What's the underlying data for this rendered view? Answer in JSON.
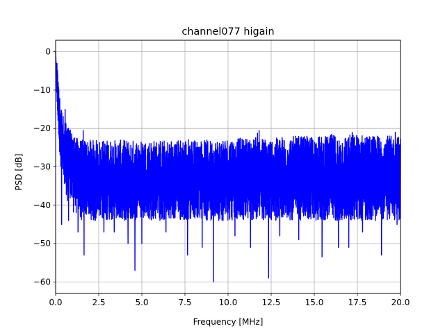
{
  "chart_data": {
    "type": "line",
    "title": "channel077 higain",
    "xlabel": "Frequency [MHz]",
    "ylabel": "PSD [dB]",
    "xlim": [
      0,
      20
    ],
    "ylim": [
      -63,
      3
    ],
    "xticks": [
      0,
      2.5,
      5,
      7.5,
      10,
      12.5,
      15,
      17.5,
      20
    ],
    "xtick_labels": [
      "0.0",
      "2.5",
      "5.0",
      "7.5",
      "10.0",
      "12.5",
      "15.0",
      "17.5",
      "20.0"
    ],
    "yticks": [
      0,
      -10,
      -20,
      -30,
      -40,
      -50,
      -60
    ],
    "ytick_labels": [
      "0",
      "−10",
      "−20",
      "−30",
      "−40",
      "−50",
      "−60"
    ],
    "grid": true,
    "series": [
      {
        "color": "#0000ff",
        "x": [
          0.0,
          0.03,
          0.06,
          0.1,
          0.15,
          0.2,
          0.25,
          0.3,
          0.4,
          0.5,
          0.6,
          0.8,
          1.0,
          1.25,
          1.5,
          1.65,
          2.0,
          2.5,
          3.0,
          3.5,
          4.0,
          4.25,
          4.6,
          5.0,
          5.5,
          6.0,
          6.3,
          6.5,
          7.0,
          7.5,
          7.65,
          8.0,
          8.5,
          8.9,
          9.2,
          9.6,
          10.0,
          10.5,
          11.0,
          11.5,
          11.8,
          12.0,
          12.4,
          12.8,
          13.0,
          13.5,
          14.0,
          14.5,
          15.0,
          15.5,
          15.8,
          16.0,
          16.5,
          17.0,
          17.5,
          18.0,
          18.4,
          18.9,
          19.5,
          20.0
        ],
        "values": [
          0.0,
          -3.5,
          -7.0,
          -9.0,
          -12.0,
          -15.0,
          -18.0,
          -20.0,
          -22.0,
          -24.0,
          -25.0,
          -26.0,
          -28.0,
          -29.5,
          -31.0,
          -32.0,
          -33.0,
          -33.5,
          -33.5,
          -34.0,
          -34.0,
          -34.0,
          -34.0,
          -34.0,
          -34.0,
          -34.0,
          -34.0,
          -33.5,
          -33.5,
          -33.5,
          -33.5,
          -33.5,
          -33.5,
          -34.0,
          -34.0,
          -33.5,
          -33.5,
          -33.5,
          -33.5,
          -33.5,
          -33.0,
          -33.5,
          -33.5,
          -33.5,
          -33.5,
          -33.0,
          -33.5,
          -33.5,
          -33.5,
          -33.5,
          -33.5,
          -33.0,
          -33.5,
          -33.0,
          -33.0,
          -33.0,
          -33.0,
          -33.0,
          -33.0,
          -33.0
        ],
        "upper": [
          0.0,
          -1.0,
          -2.0,
          -4.0,
          -7.0,
          -10.0,
          -12.0,
          -14.0,
          -16.0,
          -17.5,
          -18.5,
          -20.0,
          -21.5,
          -22.5,
          -23.0,
          -23.0,
          -23.0,
          -23.0,
          -23.0,
          -23.0,
          -23.0,
          -23.0,
          -23.0,
          -23.0,
          -23.0,
          -23.0,
          -23.0,
          -23.0,
          -23.0,
          -22.5,
          -22.5,
          -23.0,
          -23.0,
          -23.0,
          -23.0,
          -22.5,
          -22.5,
          -22.5,
          -22.5,
          -22.5,
          -20.5,
          -22.5,
          -22.5,
          -22.5,
          -22.0,
          -22.0,
          -22.0,
          -22.0,
          -22.0,
          -22.0,
          -22.0,
          -21.5,
          -22.0,
          -21.5,
          -21.5,
          -21.5,
          -22.0,
          -21.5,
          -22.0,
          -22.0
        ],
        "lower": [
          0.0,
          -6.0,
          -12.0,
          -16.0,
          -20.0,
          -24.0,
          -28.0,
          -30.0,
          -33.0,
          -36.0,
          -38.0,
          -40.0,
          -42.0,
          -43.0,
          -44.0,
          -44.0,
          -44.0,
          -44.0,
          -44.0,
          -44.0,
          -44.0,
          -44.0,
          -44.0,
          -44.0,
          -44.0,
          -44.0,
          -44.0,
          -44.0,
          -44.0,
          -44.0,
          -44.0,
          -44.0,
          -44.0,
          -44.0,
          -44.0,
          -44.0,
          -44.0,
          -44.0,
          -44.0,
          -44.0,
          -44.0,
          -44.0,
          -44.0,
          -44.0,
          -44.0,
          -44.0,
          -44.0,
          -44.0,
          -44.0,
          -44.0,
          -44.0,
          -44.0,
          -44.0,
          -44.0,
          -44.0,
          -44.0,
          -44.0,
          -44.0,
          -44.0,
          -44.0
        ],
        "dips": [
          {
            "x": 0.35,
            "value": -45.0
          },
          {
            "x": 0.75,
            "value": -44.0
          },
          {
            "x": 1.3,
            "value": -47.0
          },
          {
            "x": 1.65,
            "value": -53.0
          },
          {
            "x": 2.8,
            "value": -47.0
          },
          {
            "x": 3.4,
            "value": -47.0
          },
          {
            "x": 4.2,
            "value": -50.0
          },
          {
            "x": 4.6,
            "value": -57.0
          },
          {
            "x": 5.0,
            "value": -50.0
          },
          {
            "x": 6.4,
            "value": -47.0
          },
          {
            "x": 7.65,
            "value": -53.0
          },
          {
            "x": 8.5,
            "value": -51.0
          },
          {
            "x": 9.15,
            "value": -60.0
          },
          {
            "x": 10.4,
            "value": -48.0
          },
          {
            "x": 11.3,
            "value": -51.0
          },
          {
            "x": 12.35,
            "value": -59.0
          },
          {
            "x": 13.0,
            "value": -48.0
          },
          {
            "x": 14.1,
            "value": -49.0
          },
          {
            "x": 15.45,
            "value": -53.5
          },
          {
            "x": 16.4,
            "value": -51.0
          },
          {
            "x": 17.0,
            "value": -51.0
          },
          {
            "x": 17.8,
            "value": -47.0
          },
          {
            "x": 18.9,
            "value": -53.0
          },
          {
            "x": 19.8,
            "value": -45.0
          }
        ],
        "peaks": [
          {
            "x": 0.07,
            "value": -6.0
          },
          {
            "x": 0.15,
            "value": -8.0
          },
          {
            "x": 0.55,
            "value": -15.0
          },
          {
            "x": 1.6,
            "value": -20.5
          },
          {
            "x": 11.8,
            "value": -20.5
          },
          {
            "x": 17.2,
            "value": -21.0
          },
          {
            "x": 19.7,
            "value": -21.0
          }
        ]
      }
    ]
  }
}
